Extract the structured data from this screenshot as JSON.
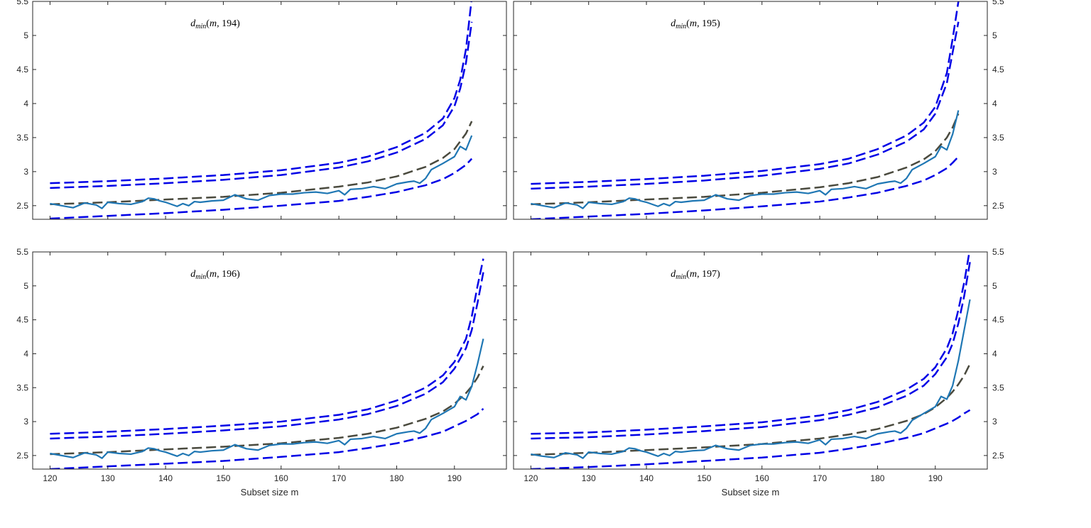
{
  "chart_data": [
    {
      "type": "line",
      "title_parts": {
        "sym": "d",
        "sub": "min",
        "rest": "(m, 194)"
      },
      "xlabel": "",
      "xlim": [
        117,
        199
      ],
      "ylim": [
        2.3,
        5.5
      ],
      "yticks": [
        2.5,
        3,
        3.5,
        4,
        4.5,
        5,
        5.5
      ],
      "xticks": [
        120,
        130,
        140,
        150,
        160,
        170,
        180,
        190
      ],
      "show_xticklabels": false,
      "y_axis_side": "left",
      "upper_outer": {
        "x": [
          120,
          130,
          140,
          150,
          160,
          170,
          175,
          180,
          185,
          188,
          190,
          191,
          192,
          193
        ],
        "y": [
          2.83,
          2.86,
          2.9,
          2.95,
          3.02,
          3.13,
          3.22,
          3.36,
          3.57,
          3.78,
          4.08,
          4.35,
          4.8,
          5.55
        ]
      },
      "upper_inner": {
        "x": [
          120,
          130,
          140,
          150,
          160,
          170,
          175,
          180,
          185,
          188,
          190,
          191,
          192,
          193
        ],
        "y": [
          2.76,
          2.79,
          2.83,
          2.88,
          2.95,
          3.06,
          3.15,
          3.28,
          3.48,
          3.68,
          3.96,
          4.22,
          4.6,
          5.2
        ]
      },
      "median": {
        "x": [
          120,
          130,
          140,
          150,
          160,
          170,
          175,
          180,
          185,
          188,
          190,
          192,
          193
        ],
        "y": [
          2.52,
          2.55,
          2.59,
          2.63,
          2.69,
          2.78,
          2.84,
          2.93,
          3.07,
          3.2,
          3.33,
          3.56,
          3.74
        ]
      },
      "lower": {
        "x": [
          120,
          130,
          140,
          150,
          160,
          170,
          175,
          180,
          185,
          188,
          190,
          192,
          193
        ],
        "y": [
          2.31,
          2.35,
          2.39,
          2.44,
          2.5,
          2.57,
          2.63,
          2.7,
          2.8,
          2.89,
          2.98,
          3.1,
          3.19
        ]
      },
      "observed": {
        "x": [
          120,
          122,
          124,
          126,
          128,
          129,
          130,
          132,
          134,
          136,
          137,
          138,
          139,
          140,
          142,
          143,
          144,
          145,
          146,
          148,
          150,
          152,
          154,
          156,
          158,
          160,
          162,
          164,
          166,
          168,
          170,
          171,
          172,
          174,
          176,
          178,
          180,
          182,
          183,
          184,
          185,
          186,
          188,
          190,
          191,
          192,
          193
        ],
        "y": [
          2.53,
          2.5,
          2.47,
          2.54,
          2.51,
          2.46,
          2.55,
          2.53,
          2.52,
          2.56,
          2.61,
          2.6,
          2.57,
          2.55,
          2.49,
          2.53,
          2.5,
          2.56,
          2.55,
          2.57,
          2.58,
          2.66,
          2.6,
          2.58,
          2.65,
          2.67,
          2.67,
          2.69,
          2.7,
          2.68,
          2.72,
          2.66,
          2.74,
          2.75,
          2.78,
          2.75,
          2.82,
          2.85,
          2.86,
          2.83,
          2.9,
          3.03,
          3.12,
          3.22,
          3.37,
          3.32,
          3.53
        ]
      }
    },
    {
      "type": "line",
      "title_parts": {
        "sym": "d",
        "sub": "min",
        "rest": "(m, 195)"
      },
      "xlabel": "",
      "xlim": [
        117,
        199
      ],
      "ylim": [
        2.3,
        5.5
      ],
      "yticks": [
        2.5,
        3,
        3.5,
        4,
        4.5,
        5,
        5.5
      ],
      "xticks": [
        120,
        130,
        140,
        150,
        160,
        170,
        180,
        190
      ],
      "show_xticklabels": false,
      "y_axis_side": "right",
      "upper_outer": {
        "x": [
          120,
          130,
          140,
          150,
          160,
          170,
          175,
          180,
          185,
          188,
          190,
          192,
          193,
          194
        ],
        "y": [
          2.82,
          2.85,
          2.89,
          2.94,
          3.01,
          3.11,
          3.19,
          3.33,
          3.53,
          3.72,
          3.95,
          4.45,
          4.95,
          5.5
        ]
      },
      "upper_inner": {
        "x": [
          120,
          130,
          140,
          150,
          160,
          170,
          175,
          180,
          185,
          188,
          190,
          192,
          193,
          194
        ],
        "y": [
          2.75,
          2.78,
          2.82,
          2.87,
          2.94,
          3.04,
          3.12,
          3.25,
          3.44,
          3.62,
          3.85,
          4.3,
          4.75,
          5.2
        ]
      },
      "median": {
        "x": [
          120,
          130,
          140,
          150,
          160,
          170,
          175,
          180,
          185,
          188,
          190,
          192,
          193,
          194
        ],
        "y": [
          2.52,
          2.55,
          2.59,
          2.63,
          2.69,
          2.77,
          2.83,
          2.92,
          3.06,
          3.18,
          3.3,
          3.5,
          3.65,
          3.85
        ]
      },
      "lower": {
        "x": [
          120,
          130,
          140,
          150,
          160,
          170,
          175,
          180,
          185,
          188,
          190,
          192,
          193,
          194
        ],
        "y": [
          2.3,
          2.34,
          2.38,
          2.43,
          2.49,
          2.56,
          2.62,
          2.69,
          2.79,
          2.87,
          2.95,
          3.05,
          3.13,
          3.22
        ]
      },
      "observed": {
        "x": [
          120,
          122,
          124,
          126,
          128,
          129,
          130,
          132,
          134,
          136,
          137,
          138,
          139,
          140,
          142,
          143,
          144,
          145,
          146,
          148,
          150,
          152,
          154,
          156,
          158,
          160,
          162,
          164,
          166,
          168,
          170,
          171,
          172,
          174,
          176,
          178,
          180,
          182,
          183,
          184,
          185,
          186,
          188,
          190,
          191,
          192,
          193,
          194
        ],
        "y": [
          2.53,
          2.5,
          2.47,
          2.54,
          2.51,
          2.46,
          2.55,
          2.53,
          2.52,
          2.56,
          2.61,
          2.6,
          2.57,
          2.55,
          2.49,
          2.53,
          2.5,
          2.56,
          2.55,
          2.57,
          2.58,
          2.66,
          2.6,
          2.58,
          2.65,
          2.67,
          2.67,
          2.69,
          2.7,
          2.68,
          2.72,
          2.66,
          2.74,
          2.75,
          2.78,
          2.75,
          2.82,
          2.85,
          2.86,
          2.83,
          2.9,
          3.03,
          3.12,
          3.22,
          3.37,
          3.32,
          3.55,
          3.9
        ]
      }
    },
    {
      "type": "line",
      "title_parts": {
        "sym": "d",
        "sub": "min",
        "rest": "(m, 196)"
      },
      "xlabel": "Subset size m",
      "xlim": [
        117,
        199
      ],
      "ylim": [
        2.3,
        5.5
      ],
      "yticks": [
        2.5,
        3,
        3.5,
        4,
        4.5,
        5,
        5.5
      ],
      "xticks": [
        120,
        130,
        140,
        150,
        160,
        170,
        180,
        190
      ],
      "show_xticklabels": true,
      "y_axis_side": "left",
      "upper_outer": {
        "x": [
          120,
          130,
          140,
          150,
          160,
          170,
          175,
          180,
          185,
          188,
          190,
          192,
          193,
          194,
          195
        ],
        "y": [
          2.82,
          2.85,
          2.89,
          2.94,
          3.0,
          3.1,
          3.18,
          3.31,
          3.5,
          3.68,
          3.88,
          4.22,
          4.55,
          5.0,
          5.4
        ]
      },
      "upper_inner": {
        "x": [
          120,
          130,
          140,
          150,
          160,
          170,
          175,
          180,
          185,
          188,
          190,
          192,
          193,
          194,
          195
        ],
        "y": [
          2.75,
          2.78,
          2.82,
          2.87,
          2.93,
          3.03,
          3.11,
          3.23,
          3.41,
          3.58,
          3.78,
          4.08,
          4.35,
          4.75,
          5.2
        ]
      },
      "median": {
        "x": [
          120,
          130,
          140,
          150,
          160,
          170,
          175,
          180,
          185,
          188,
          190,
          192,
          193,
          194,
          195
        ],
        "y": [
          2.52,
          2.55,
          2.59,
          2.63,
          2.68,
          2.76,
          2.82,
          2.91,
          3.04,
          3.15,
          3.26,
          3.42,
          3.52,
          3.65,
          3.82
        ]
      },
      "lower": {
        "x": [
          120,
          130,
          140,
          150,
          160,
          170,
          175,
          180,
          185,
          188,
          190,
          192,
          193,
          194,
          195
        ],
        "y": [
          2.3,
          2.34,
          2.38,
          2.42,
          2.48,
          2.55,
          2.61,
          2.68,
          2.78,
          2.85,
          2.93,
          3.01,
          3.06,
          3.11,
          3.19
        ]
      },
      "observed": {
        "x": [
          120,
          122,
          124,
          126,
          128,
          129,
          130,
          132,
          134,
          136,
          137,
          138,
          139,
          140,
          142,
          143,
          144,
          145,
          146,
          148,
          150,
          152,
          154,
          156,
          158,
          160,
          162,
          164,
          166,
          168,
          170,
          171,
          172,
          174,
          176,
          178,
          180,
          182,
          183,
          184,
          185,
          186,
          188,
          190,
          191,
          192,
          193,
          194,
          195
        ],
        "y": [
          2.53,
          2.5,
          2.47,
          2.54,
          2.51,
          2.46,
          2.55,
          2.53,
          2.52,
          2.56,
          2.61,
          2.6,
          2.57,
          2.55,
          2.49,
          2.53,
          2.5,
          2.56,
          2.55,
          2.57,
          2.58,
          2.66,
          2.6,
          2.58,
          2.65,
          2.67,
          2.67,
          2.69,
          2.7,
          2.68,
          2.72,
          2.66,
          2.74,
          2.75,
          2.78,
          2.75,
          2.82,
          2.85,
          2.86,
          2.83,
          2.9,
          3.03,
          3.12,
          3.22,
          3.37,
          3.32,
          3.52,
          3.85,
          4.22
        ]
      }
    },
    {
      "type": "line",
      "title_parts": {
        "sym": "d",
        "sub": "min",
        "rest": "(m, 197)"
      },
      "xlabel": "Subset size m",
      "xlim": [
        117,
        199
      ],
      "ylim": [
        2.3,
        5.5
      ],
      "yticks": [
        2.5,
        3,
        3.5,
        4,
        4.5,
        5,
        5.5
      ],
      "xticks": [
        120,
        130,
        140,
        150,
        160,
        170,
        180,
        190
      ],
      "show_xticklabels": true,
      "y_axis_side": "right",
      "upper_outer": {
        "x": [
          120,
          130,
          140,
          150,
          160,
          170,
          175,
          180,
          185,
          188,
          190,
          192,
          193,
          194,
          195,
          196
        ],
        "y": [
          2.82,
          2.84,
          2.88,
          2.93,
          2.99,
          3.09,
          3.17,
          3.29,
          3.47,
          3.63,
          3.8,
          4.08,
          4.3,
          4.65,
          5.05,
          5.55
        ]
      },
      "upper_inner": {
        "x": [
          120,
          130,
          140,
          150,
          160,
          170,
          175,
          180,
          185,
          188,
          190,
          192,
          193,
          194,
          195,
          196
        ],
        "y": [
          2.75,
          2.77,
          2.81,
          2.86,
          2.92,
          3.02,
          3.1,
          3.21,
          3.38,
          3.53,
          3.7,
          3.95,
          4.15,
          4.45,
          4.85,
          5.35
        ]
      },
      "median": {
        "x": [
          120,
          130,
          140,
          150,
          160,
          170,
          175,
          180,
          185,
          188,
          190,
          192,
          193,
          194,
          195,
          196
        ],
        "y": [
          2.51,
          2.54,
          2.58,
          2.62,
          2.67,
          2.75,
          2.81,
          2.89,
          3.01,
          3.11,
          3.21,
          3.35,
          3.44,
          3.55,
          3.68,
          3.85
        ]
      },
      "lower": {
        "x": [
          120,
          130,
          140,
          150,
          160,
          170,
          175,
          180,
          185,
          188,
          190,
          192,
          193,
          194,
          195,
          196
        ],
        "y": [
          2.3,
          2.33,
          2.37,
          2.42,
          2.47,
          2.54,
          2.6,
          2.67,
          2.76,
          2.83,
          2.9,
          2.97,
          3.01,
          3.06,
          3.12,
          3.17
        ]
      },
      "observed": {
        "x": [
          120,
          122,
          124,
          126,
          128,
          129,
          130,
          132,
          134,
          136,
          137,
          138,
          139,
          140,
          142,
          143,
          144,
          145,
          146,
          148,
          150,
          152,
          154,
          156,
          158,
          160,
          162,
          164,
          166,
          168,
          170,
          171,
          172,
          174,
          176,
          178,
          180,
          182,
          183,
          184,
          185,
          186,
          188,
          190,
          191,
          192,
          193,
          194,
          195,
          196
        ],
        "y": [
          2.52,
          2.49,
          2.47,
          2.54,
          2.51,
          2.46,
          2.55,
          2.53,
          2.52,
          2.56,
          2.61,
          2.6,
          2.57,
          2.55,
          2.49,
          2.53,
          2.5,
          2.56,
          2.55,
          2.57,
          2.58,
          2.65,
          2.6,
          2.58,
          2.65,
          2.67,
          2.67,
          2.69,
          2.7,
          2.68,
          2.73,
          2.66,
          2.74,
          2.75,
          2.78,
          2.75,
          2.82,
          2.85,
          2.86,
          2.83,
          2.9,
          3.02,
          3.12,
          3.22,
          3.37,
          3.33,
          3.53,
          3.9,
          4.35,
          4.8
        ]
      }
    }
  ]
}
